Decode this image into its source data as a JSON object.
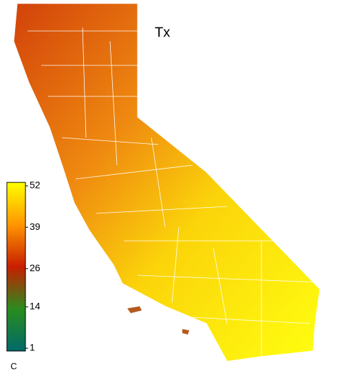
{
  "map": {
    "title": "Tx",
    "colorbar": {
      "unit": "C",
      "lim": [
        1,
        52
      ],
      "ticks": [
        52,
        39,
        26,
        14,
        1
      ],
      "colors": [
        "#006a6a",
        "#2a8c1e",
        "#c81e00",
        "#ff9600",
        "#ffff00"
      ]
    }
  }
}
